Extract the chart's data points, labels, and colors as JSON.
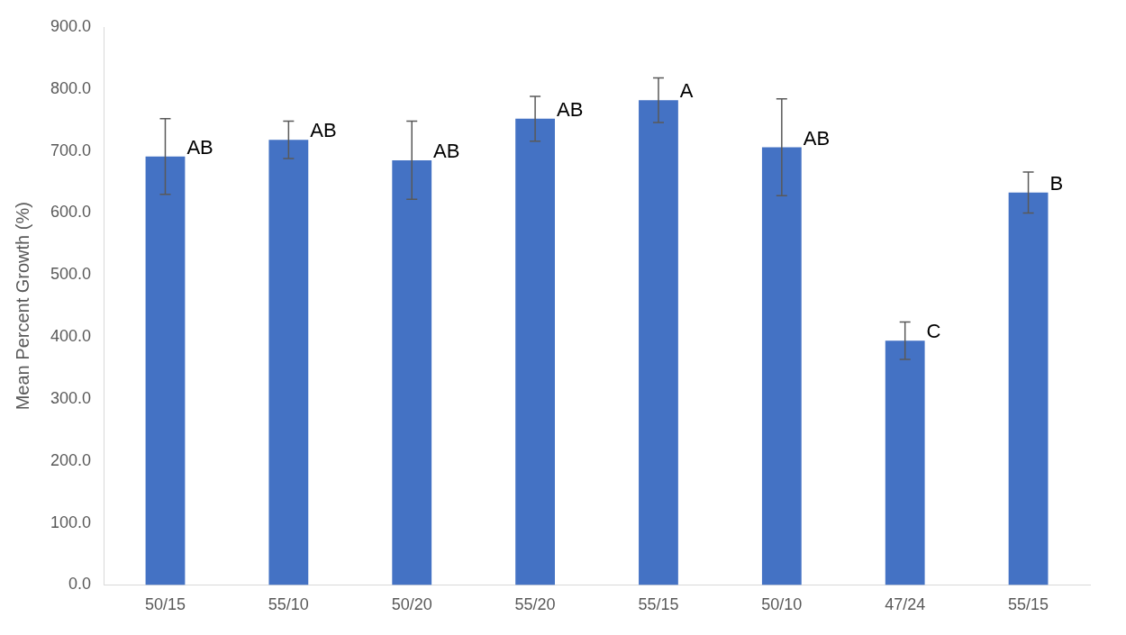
{
  "chart_data": {
    "type": "bar",
    "ylabel": "Mean Percent Growth (%)",
    "categories": [
      "50/15",
      "55/10",
      "50/20",
      "55/20",
      "55/15",
      "50/10",
      "47/24",
      "55/15"
    ],
    "values": [
      691,
      718,
      685,
      752,
      782,
      706,
      394,
      633
    ],
    "errors": [
      61,
      30,
      63,
      36,
      36,
      78,
      30,
      33
    ],
    "color": "#4472c4",
    "ylim": [
      0,
      900
    ],
    "yticks": [
      {
        "value": 0,
        "label": "0.0"
      },
      {
        "value": 100,
        "label": "100.0"
      },
      {
        "value": 200,
        "label": "200.0"
      },
      {
        "value": 300,
        "label": "300.0"
      },
      {
        "value": 400,
        "label": "400.0"
      },
      {
        "value": 500,
        "label": "500.0"
      },
      {
        "value": 600,
        "label": "600.0"
      },
      {
        "value": 700,
        "label": "700.0"
      },
      {
        "value": 800,
        "label": "800.0"
      },
      {
        "value": 900,
        "label": "900.0"
      }
    ],
    "annotations": [
      {
        "text": "AB",
        "x": "50/15",
        "y": 691
      },
      {
        "text": "AB",
        "x": "55/10",
        "y": 718
      },
      {
        "text": "AB",
        "x": "50/20",
        "y": 685
      },
      {
        "text": "AB",
        "x": "55/20",
        "y": 752
      },
      {
        "text": "A",
        "x": "55/15",
        "y": 782
      },
      {
        "text": "AB",
        "x": "50/10",
        "y": 706
      },
      {
        "text": "C",
        "x": "47/24",
        "y": 394
      },
      "B"
    ],
    "grid": false,
    "legend": false
  }
}
